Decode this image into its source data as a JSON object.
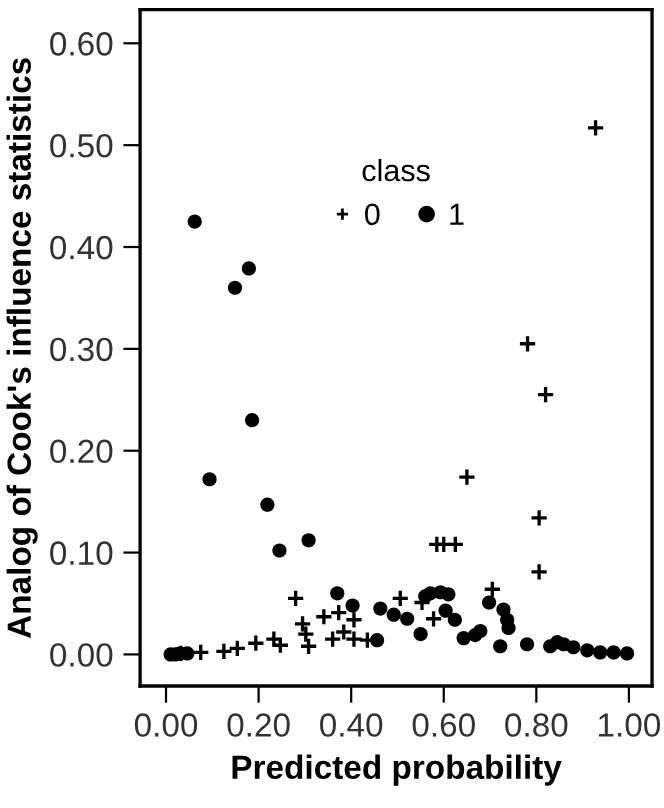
{
  "chart_data": {
    "type": "scatter",
    "xlabel": "Predicted probability",
    "ylabel": "Analog of Cook's influence statistics",
    "legend_title": "class",
    "legend": "top",
    "grid": false,
    "xlim": [
      -0.056,
      1.05
    ],
    "ylim": [
      -0.031,
      0.633
    ],
    "xticks": [
      {
        "value": 0,
        "label": "0.00"
      },
      {
        "value": 0.2,
        "label": "0.20"
      },
      {
        "value": 0.4,
        "label": "0.40"
      },
      {
        "value": 0.6,
        "label": "0.60"
      },
      {
        "value": 0.8,
        "label": "0.80"
      },
      {
        "value": 1.0,
        "label": "1.00"
      }
    ],
    "yticks": [
      {
        "value": 0,
        "label": "0.00"
      },
      {
        "value": 0.1,
        "label": "0.10"
      },
      {
        "value": 0.2,
        "label": "0.20"
      },
      {
        "value": 0.3,
        "label": "0.30"
      },
      {
        "value": 0.4,
        "label": "0.40"
      },
      {
        "value": 0.5,
        "label": "0.50"
      },
      {
        "value": 0.6,
        "label": "0.60"
      }
    ],
    "series": [
      {
        "name": "0",
        "color": "#000000",
        "marker": "cross",
        "x": [
          0.928,
          0.781,
          0.82,
          0.65,
          0.806,
          0.806,
          0.585,
          0.6,
          0.625,
          0.28,
          0.705,
          0.295,
          0.302,
          0.308,
          0.341,
          0.36,
          0.373,
          0.384,
          0.406,
          0.406,
          0.435,
          0.506,
          0.553,
          0.578,
          0.194,
          0.233,
          0.247,
          0.154,
          0.125,
          0.075,
          0.032
        ],
        "values": [
          0.517,
          0.305,
          0.255,
          0.174,
          0.134,
          0.081,
          0.108,
          0.108,
          0.108,
          0.055,
          0.064,
          0.03,
          0.02,
          0.008,
          0.037,
          0.015,
          0.041,
          0.022,
          0.034,
          0.015,
          0.014,
          0.055,
          0.051,
          0.035,
          0.011,
          0.015,
          0.009,
          0.006,
          0.003,
          0.002,
          0.001
        ]
      },
      {
        "name": "1",
        "color": "#000000",
        "marker": "circle",
        "x": [
          0.062,
          0.149,
          0.179,
          0.094,
          0.186,
          0.219,
          0.245,
          0.308,
          0.01,
          0.02,
          0.03,
          0.046,
          0.37,
          0.403,
          0.456,
          0.463,
          0.492,
          0.521,
          0.55,
          0.56,
          0.571,
          0.593,
          0.61,
          0.604,
          0.624,
          0.643,
          0.668,
          0.679,
          0.698,
          0.722,
          0.729,
          0.737,
          0.74,
          0.78,
          0.83,
          0.845,
          0.859,
          0.88,
          0.91,
          0.938,
          0.967,
          0.996
        ],
        "values": [
          0.425,
          0.36,
          0.379,
          0.172,
          0.23,
          0.147,
          0.102,
          0.112,
          0.0,
          0.0,
          0.001,
          0.001,
          0.06,
          0.048,
          0.014,
          0.045,
          0.039,
          0.035,
          0.02,
          0.057,
          0.06,
          0.061,
          0.059,
          0.043,
          0.034,
          0.016,
          0.019,
          0.023,
          0.051,
          0.008,
          0.044,
          0.034,
          0.026,
          0.01,
          0.008,
          0.012,
          0.01,
          0.007,
          0.004,
          0.002,
          0.002,
          0.001
        ]
      }
    ]
  }
}
